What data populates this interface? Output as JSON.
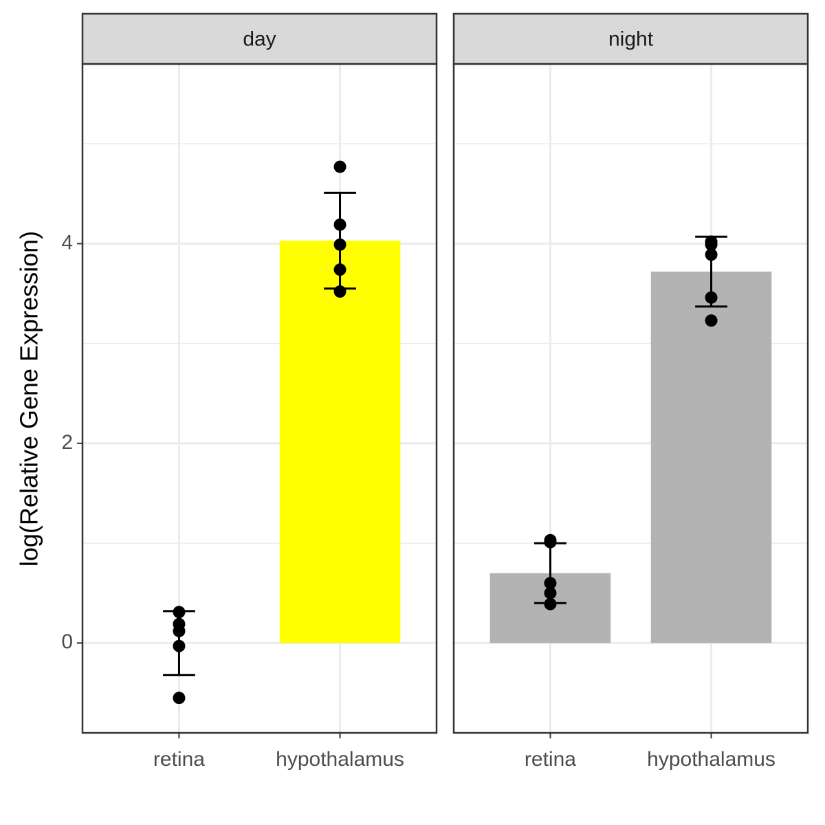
{
  "chart_data": [
    {
      "type": "bar",
      "title": "day",
      "ylabel": "log(Relative Gene Expression)",
      "categories": [
        "retina",
        "hypothalamus"
      ],
      "values": [
        0,
        4.03
      ],
      "errors": [
        0.32,
        0.48
      ],
      "colors": [
        "#b3b3b3",
        "#ffff00"
      ],
      "points": [
        [
          0.31,
          0.19,
          0.12,
          -0.03,
          -0.55
        ],
        [
          4.77,
          4.19,
          3.99,
          3.74,
          3.52
        ]
      ],
      "ylim": [
        -0.9,
        5.8
      ],
      "yticks": [
        0,
        2,
        4
      ],
      "grid": true
    },
    {
      "type": "bar",
      "title": "night",
      "categories": [
        "retina",
        "hypothalamus"
      ],
      "values": [
        0.7,
        3.72
      ],
      "errors": [
        0.3,
        0.35
      ],
      "colors": [
        "#b3b3b3",
        "#b3b3b3"
      ],
      "points": [
        [
          1.03,
          1.01,
          0.6,
          0.5,
          0.39
        ],
        [
          4.02,
          3.99,
          3.89,
          3.46,
          3.23
        ]
      ],
      "ylim": [
        -0.9,
        5.8
      ],
      "yticks": [
        0,
        2,
        4
      ],
      "grid": true
    }
  ]
}
